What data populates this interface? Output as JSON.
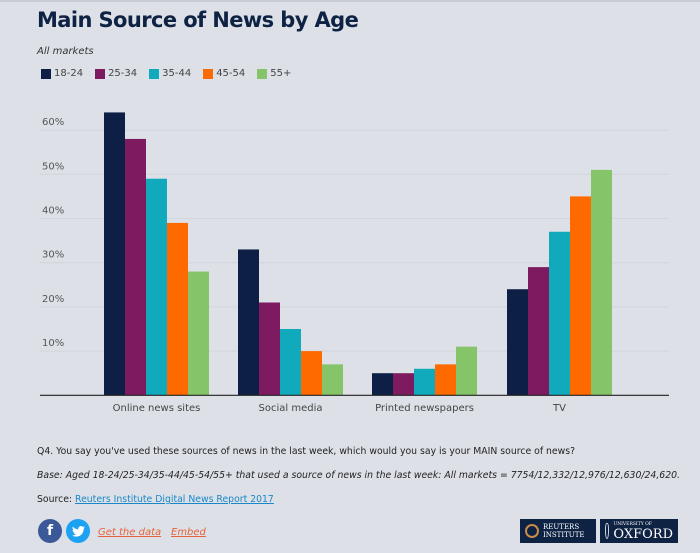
{
  "header": {
    "title": "Main Source of News by Age",
    "subtitle": "All markets"
  },
  "colors": {
    "18-24": "#0e1f45",
    "25-34": "#7e1b60",
    "35-44": "#11aabd",
    "45-54": "#ff6a00",
    "55+": "#86c46a",
    "axis": "#222222",
    "grid": "#d2d6dc"
  },
  "chart_data": {
    "type": "bar",
    "title": "Main Source of News by Age",
    "subtitle": "All markets",
    "categories": [
      "Online news sites",
      "Social media",
      "Printed newspapers",
      "TV"
    ],
    "series": [
      {
        "name": "18-24",
        "values": [
          64,
          33,
          5,
          24
        ]
      },
      {
        "name": "25-34",
        "values": [
          58,
          21,
          5,
          29
        ]
      },
      {
        "name": "35-44",
        "values": [
          49,
          15,
          6,
          37
        ]
      },
      {
        "name": "45-54",
        "values": [
          39,
          10,
          7,
          45
        ]
      },
      {
        "name": "55+",
        "values": [
          28,
          7,
          11,
          51
        ]
      }
    ],
    "yticks": [
      "10%",
      "20%",
      "30%",
      "40%",
      "50%",
      "60%"
    ],
    "ytick_values": [
      10,
      20,
      30,
      40,
      50,
      60
    ],
    "xlabel": "",
    "ylabel": "",
    "ylim": [
      0,
      60
    ],
    "unit": "%",
    "grid": true,
    "legend_position": "top-left"
  },
  "footer": {
    "question": "Q4. You say you've used these sources of news in the last week, which would you say is your MAIN source of news?",
    "base": "Base: Aged 18-24/25-34/35-44/45-54/55+ that used a source of news in the last week: All markets = 7754/12,332/12,976/12,630/24,620.",
    "source_prefix": "Source: ",
    "source_link": "Reuters Institute Digital News Report 2017",
    "facebook_icon": "f",
    "twitter_icon": "🐦",
    "get_data": "Get the data",
    "embed": "Embed",
    "logo_reuters_line1": "REUTERS",
    "logo_reuters_line2": "INSTITUTE",
    "logo_oxford_line1": "UNIVERSITY OF",
    "logo_oxford_line2": "OXFORD"
  }
}
